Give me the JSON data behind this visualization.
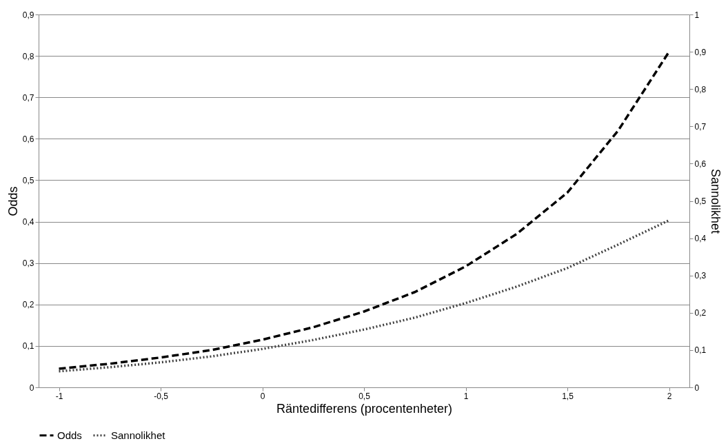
{
  "chart_data": {
    "type": "line",
    "xlabel": "Räntedifferens (procentenheter)",
    "ylabel": "Odds",
    "y2label": "Sannolikhet",
    "x": [
      -1,
      -0.75,
      -0.5,
      -0.25,
      0,
      0.25,
      0.5,
      0.75,
      1,
      1.25,
      1.5,
      1.75,
      2
    ],
    "series": [
      {
        "name": "Odds",
        "color": "#000000",
        "line_style": "dashed",
        "values": [
          0.045,
          0.057,
          0.072,
          0.09,
          0.115,
          0.145,
          0.183,
          0.23,
          0.292,
          0.37,
          0.47,
          0.62,
          0.81
        ]
      },
      {
        "name": "Sannolikhet",
        "color": "#404040",
        "line_style": "dotted",
        "axis": "y2",
        "values": [
          0.043,
          0.054,
          0.067,
          0.083,
          0.103,
          0.127,
          0.155,
          0.187,
          0.226,
          0.27,
          0.32,
          0.383,
          0.448
        ]
      }
    ],
    "xlim": [
      -1.1,
      2.1
    ],
    "xticks": [
      -1,
      {
        "value": -0.5,
        "label": "-0,5"
      },
      0,
      {
        "value": 0.5,
        "label": "0,5"
      },
      1,
      {
        "value": 1.5,
        "label": "1,5"
      },
      2
    ],
    "ylim": [
      0,
      0.9
    ],
    "yticks": [
      0,
      {
        "value": 0.1,
        "label": "0,1"
      },
      {
        "value": 0.2,
        "label": "0,2"
      },
      {
        "value": 0.3,
        "label": "0,3"
      },
      {
        "value": 0.4,
        "label": "0,4"
      },
      {
        "value": 0.5,
        "label": "0,5"
      },
      {
        "value": 0.6,
        "label": "0,6"
      },
      {
        "value": 0.7,
        "label": "0,7"
      },
      {
        "value": 0.8,
        "label": "0,8"
      },
      {
        "value": 0.9,
        "label": "0,9"
      }
    ],
    "y2lim": [
      0,
      1
    ],
    "y2ticks": [
      0,
      {
        "value": 0.1,
        "label": "0,1"
      },
      {
        "value": 0.2,
        "label": "0,2"
      },
      {
        "value": 0.3,
        "label": "0,3"
      },
      {
        "value": 0.4,
        "label": "0,4"
      },
      {
        "value": 0.5,
        "label": "0,5"
      },
      {
        "value": 0.6,
        "label": "0,6"
      },
      {
        "value": 0.7,
        "label": "0,7"
      },
      {
        "value": 0.8,
        "label": "0,8"
      },
      {
        "value": 0.9,
        "label": "0,9"
      },
      1
    ],
    "grid": "y",
    "legend": "bottom",
    "marker": "none"
  }
}
